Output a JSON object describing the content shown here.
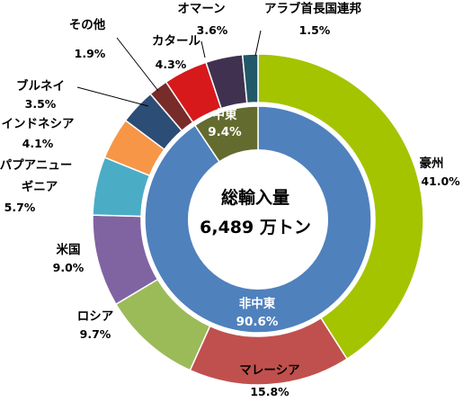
{
  "chart_data": {
    "type": "pie",
    "style": "double-donut",
    "center_title": "総輸入量",
    "center_value": "6,489 万トン",
    "grid": false,
    "legend": "none (direct labels)",
    "inner": {
      "slices": [
        {
          "label": "非中東",
          "value": 90.6,
          "display": "90.6%",
          "color": "#4f81bd"
        },
        {
          "label": "中東",
          "value": 9.4,
          "display": "9.4%",
          "color": "#636b2f"
        }
      ]
    },
    "outer": {
      "slices": [
        {
          "label": "豪州",
          "value": 41.0,
          "display": "41.0%",
          "color": "#a4c400"
        },
        {
          "label": "マレーシア",
          "value": 15.8,
          "display": "15.8%",
          "color": "#c0504d"
        },
        {
          "label": "ロシア",
          "value": 9.7,
          "display": "9.7%",
          "color": "#9bbb59"
        },
        {
          "label": "米国",
          "value": 9.0,
          "display": "9.0%",
          "color": "#8064a2"
        },
        {
          "label": "パプアニューギニア",
          "label_lines": [
            "パプアニュー",
            "ギニア"
          ],
          "value": 5.7,
          "display": "5.7%",
          "color": "#4bacc6"
        },
        {
          "label": "インドネシア",
          "value": 4.1,
          "display": "4.1%",
          "color": "#f79646"
        },
        {
          "label": "ブルネイ",
          "value": 3.5,
          "display": "3.5%",
          "color": "#2c4d75"
        },
        {
          "label": "その他",
          "value": 1.9,
          "display": "1.9%",
          "color": "#772c2a"
        },
        {
          "label": "カタール",
          "value": 4.3,
          "display": "4.3%",
          "color": "#d7191c"
        },
        {
          "label": "オマーン",
          "value": 3.6,
          "display": "3.6%",
          "color": "#403151"
        },
        {
          "label": "アラブ首長国連邦",
          "value": 1.5,
          "display": "1.5%",
          "color": "#215968"
        }
      ]
    }
  }
}
